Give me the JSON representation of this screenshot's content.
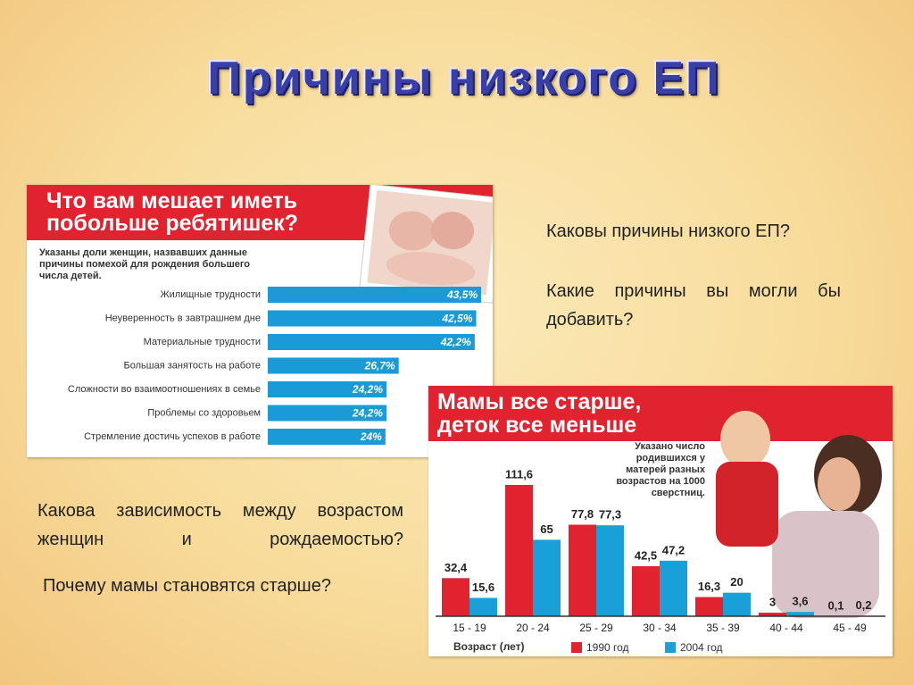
{
  "title": "Причины низкого ЕП",
  "questions": [
    "Каковы причины низкого ЕП?",
    "Какие причины вы могли бы добавить?",
    "Какова зависимость между возрастом женщин и рождаемостью?",
    "Почему мамы становятся старше?"
  ],
  "chart_data": [
    {
      "type": "barh",
      "title": "Что вам мешает иметь побольше ребятишек?",
      "subtitle": "Указаны доли женщин, назвавших данные причины помехой для рождения большего числа детей.",
      "categories": [
        "Жилищные трудности",
        "Неуверенность в завтрашнем дне",
        "Материальные трудности",
        "Большая занятость на работе",
        "Сложности во взаимоотношениях в семье",
        "Проблемы со здоровьем",
        "Стремление достичь успехов в работе"
      ],
      "values": [
        43.5,
        42.5,
        42.2,
        26.7,
        24.2,
        24.2,
        24
      ],
      "value_labels": [
        "43,5%",
        "42,5%",
        "42,2%",
        "26,7%",
        "24,2%",
        "24,2%",
        "24%"
      ],
      "color": "#1a9ad6"
    },
    {
      "type": "bar",
      "title": "Мамы все старше, деток все меньше",
      "subtitle": "Указано число родившихся у матерей разных возрастов на 1000 сверстниц.",
      "x_label": "Возраст (лет)",
      "categories": [
        "15 - 19",
        "20 - 24",
        "25 - 29",
        "30 - 34",
        "35 - 39",
        "40 - 44",
        "45 - 49"
      ],
      "series": [
        {
          "name": "1990 год",
          "color": "#e0232e",
          "values": [
            32.4,
            111.6,
            77.8,
            42.5,
            16.3,
            3,
            0.1
          ],
          "value_labels": [
            "32,4",
            "111,6",
            "77,8",
            "42,5",
            "16,3",
            "3",
            "0,1"
          ]
        },
        {
          "name": "2004 год",
          "color": "#1aa0d8",
          "values": [
            15.6,
            65,
            77.3,
            47.2,
            20,
            3.6,
            0.2
          ],
          "value_labels": [
            "15,6",
            "65",
            "77,3",
            "47,2",
            "20",
            "3,6",
            "0,2"
          ]
        }
      ]
    }
  ]
}
